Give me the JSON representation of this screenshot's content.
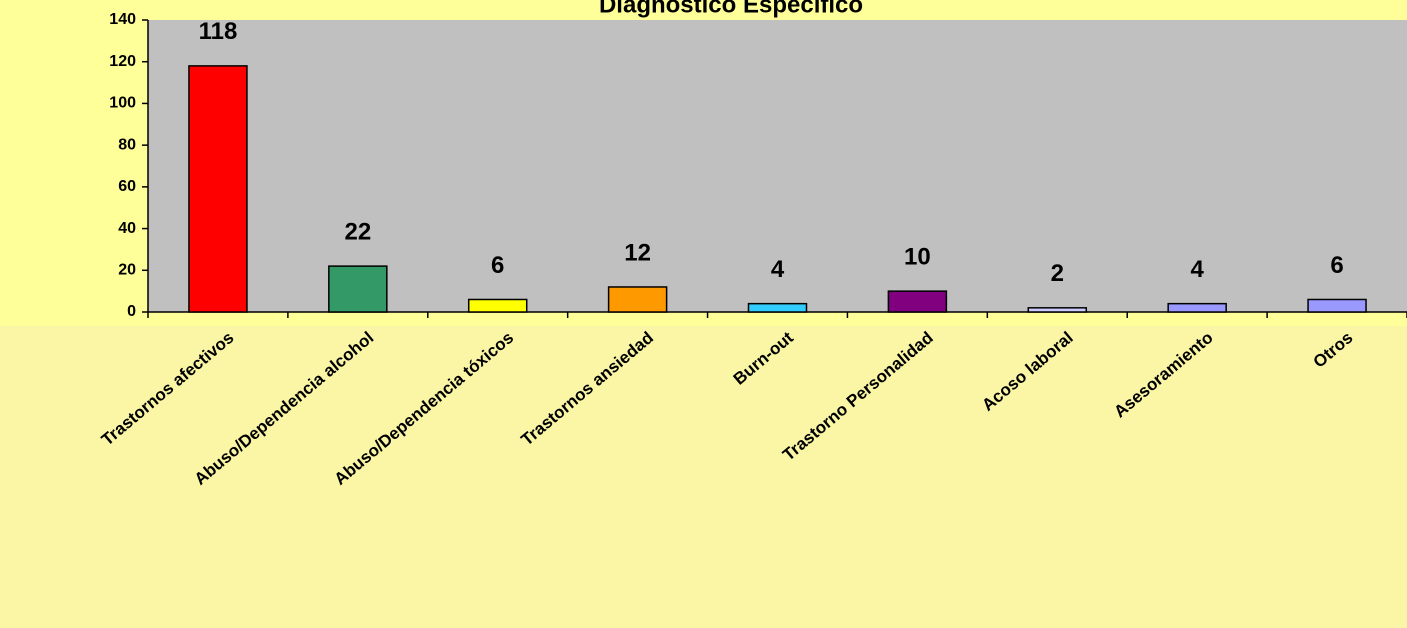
{
  "chart_data": {
    "type": "bar",
    "title": "Diagnóstico Específico",
    "categories": [
      "Trastornos afectivos",
      "Abuso/Dependencia alcohol",
      "Abuso/Dependencia tóxicos",
      "Trastornos ansiedad",
      "Burn-out",
      "Trastorno Personalidad",
      "Acoso laboral",
      "Asesoramiento",
      "Otros"
    ],
    "values": [
      118,
      22,
      6,
      12,
      4,
      10,
      2,
      4,
      6
    ],
    "colors": [
      "#ff0000",
      "#339966",
      "#ffff00",
      "#ff9900",
      "#33ccff",
      "#800080",
      "#ccccff",
      "#9999ff",
      "#9999ff"
    ],
    "ylim": [
      0,
      140
    ],
    "yticks": [
      0,
      20,
      40,
      60,
      80,
      100,
      120,
      140
    ]
  }
}
